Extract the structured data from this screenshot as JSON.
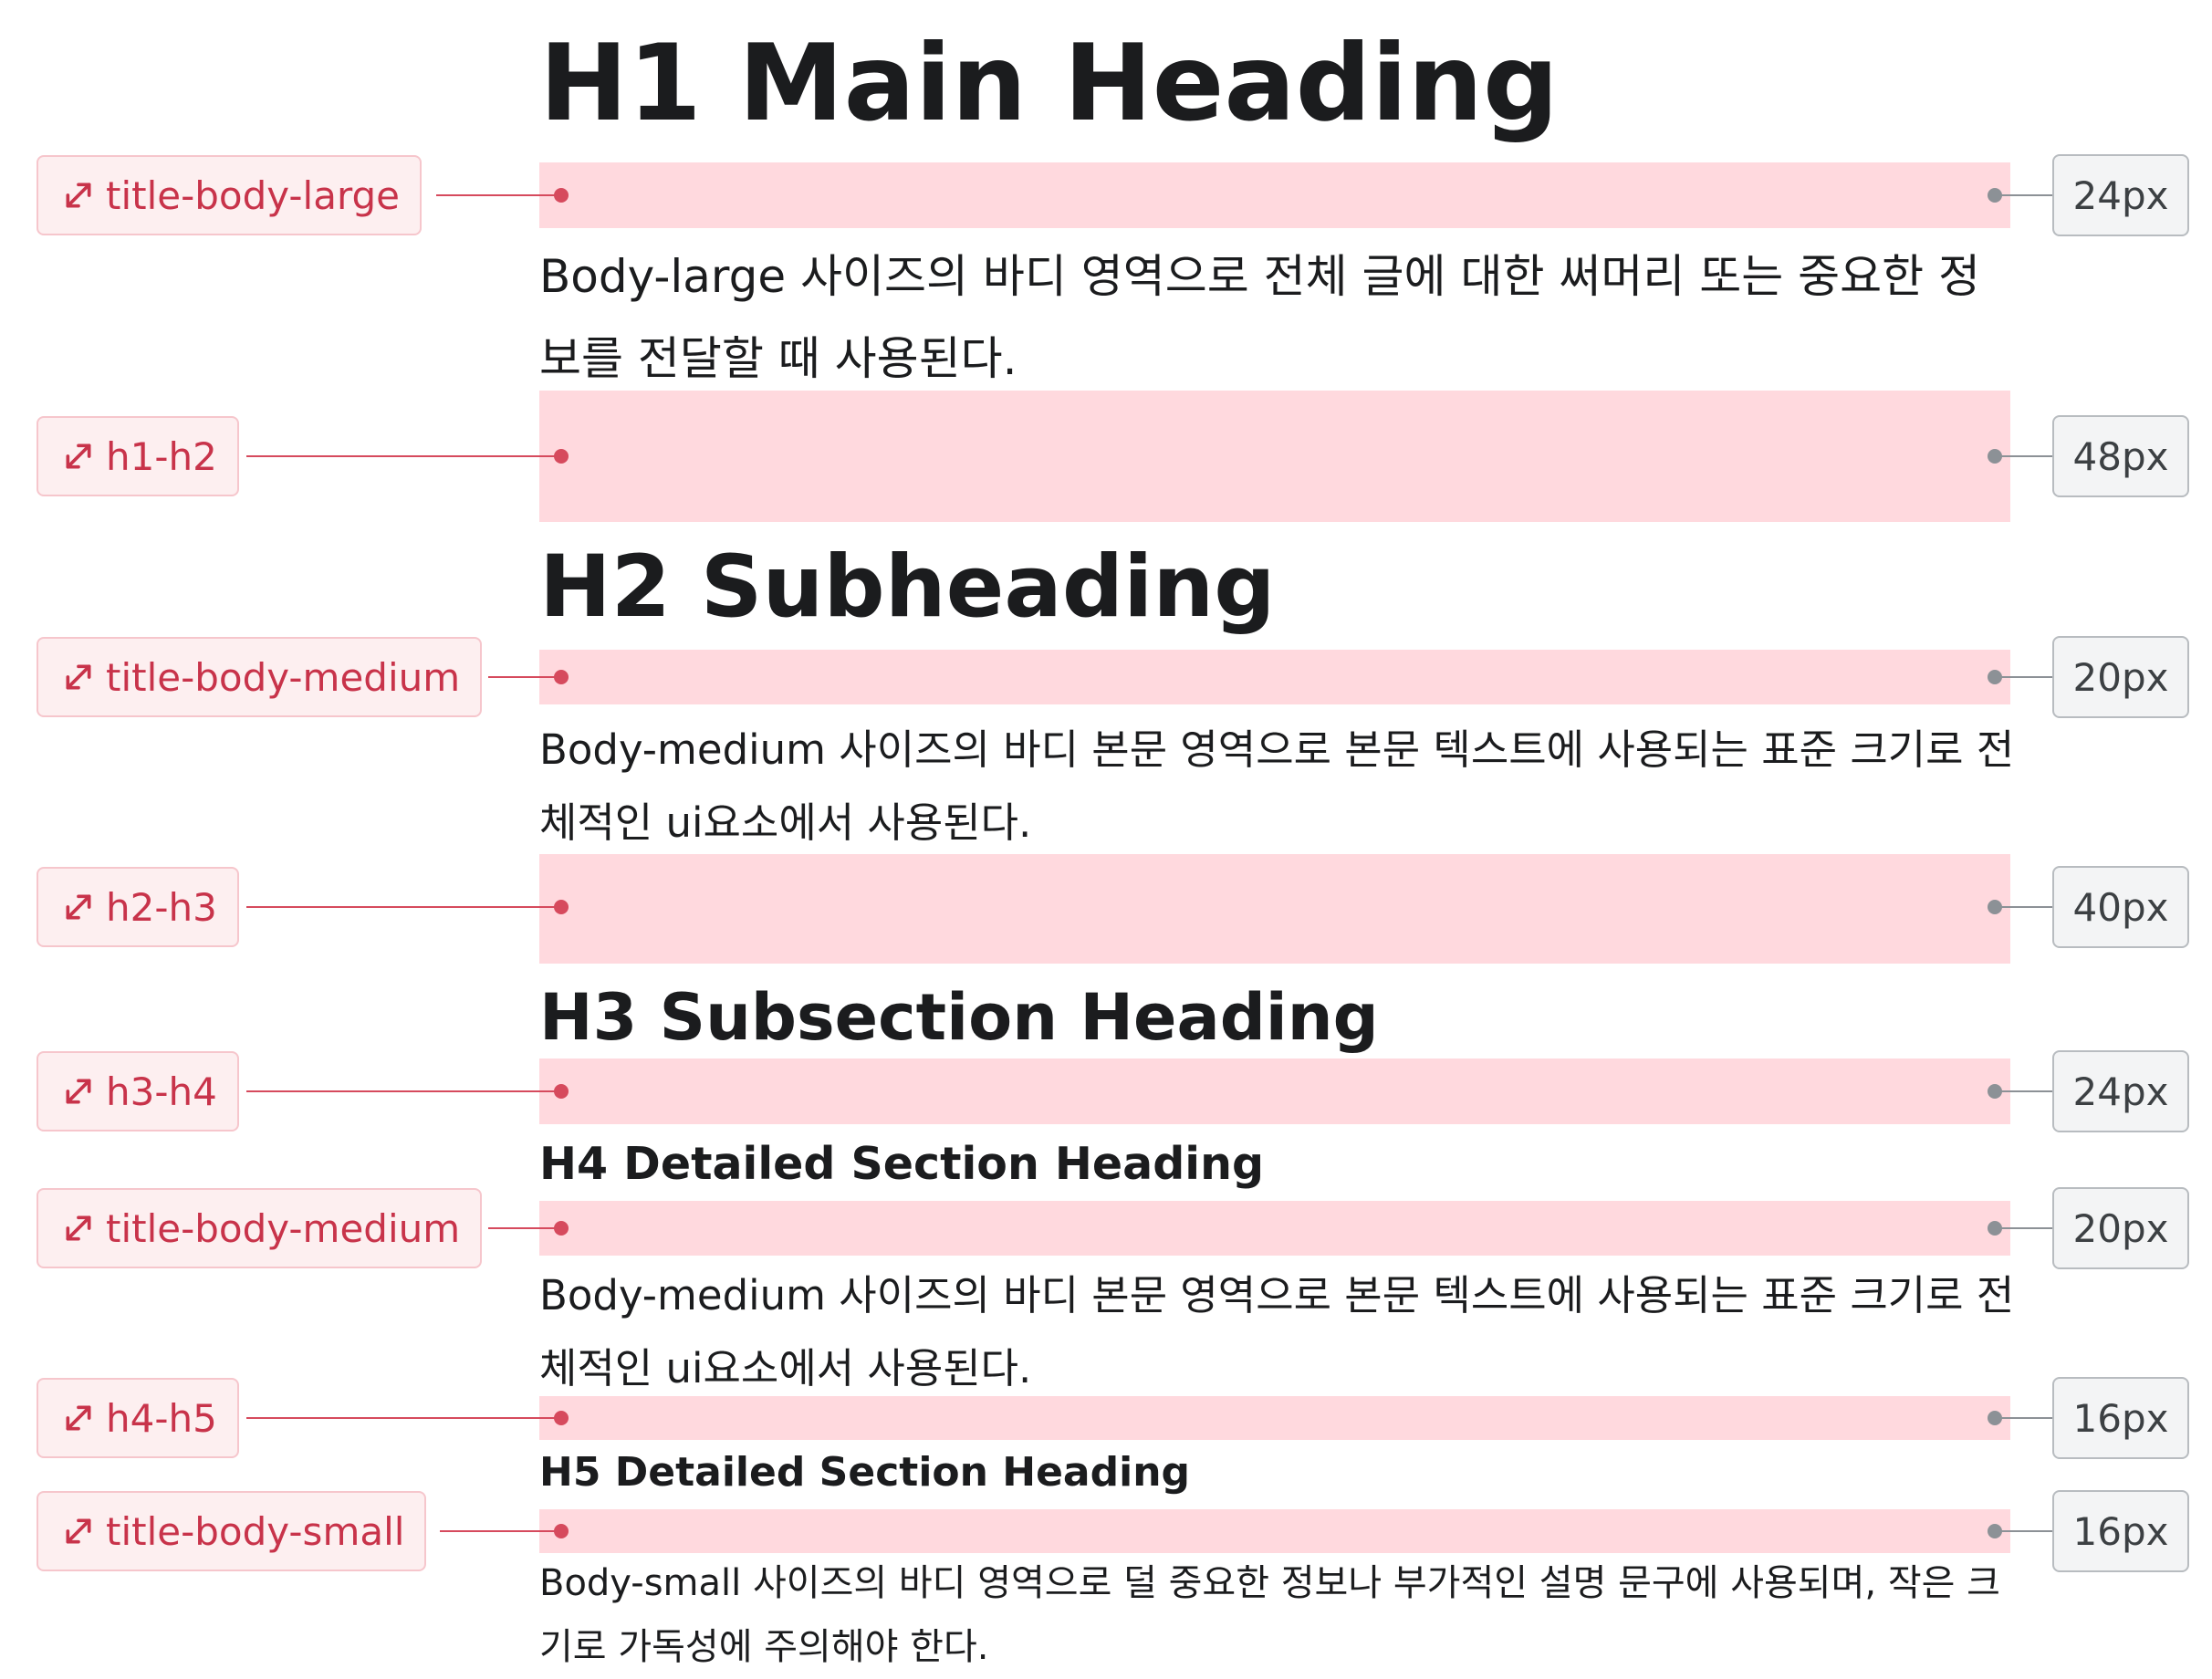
{
  "headings": {
    "h1": "H1 Main Heading",
    "h2": "H2 Subheading",
    "h3": "H3 Subsection Heading",
    "h4": "H4 Detailed Section Heading",
    "h5": "H5 Detailed Section Heading"
  },
  "bodies": {
    "large": "Body-large 사이즈의 바디 영역으로 전체 글에 대한 써머리 또는 중요한 정보를 전달할 때 사용된다.",
    "medium_1": "Body-medium 사이즈의 바디 본문 영역으로 본문 텍스트에 사용되는 표준 크기로 전체적인 ui요소에서 사용된다.",
    "medium_2": "Body-medium 사이즈의 바디 본문 영역으로 본문 텍스트에 사용되는 표준 크기로 전체적인 ui요소에서 사용된다.",
    "small": "Body-small 사이즈의 바디 영역으로 덜 중요한 정보나 부가적인 설명 문구에 사용되며, 작은 크기로 가독성에 주의해야 한다."
  },
  "spacings": [
    {
      "label": "title-body-large",
      "value": "24px"
    },
    {
      "label": "h1-h2",
      "value": "48px"
    },
    {
      "label": "title-body-medium",
      "value": "20px"
    },
    {
      "label": "h2-h3",
      "value": "40px"
    },
    {
      "label": "h3-h4",
      "value": "24px"
    },
    {
      "label": "title-body-medium",
      "value": "20px"
    },
    {
      "label": "h4-h5",
      "value": "16px"
    },
    {
      "label": "title-body-small",
      "value": "16px"
    }
  ],
  "icons": {
    "spacing_tag": "resize-diagonal-icon"
  },
  "colors": {
    "band": "#ffd9de",
    "tag_text": "#c8334a",
    "tag_border": "#f6c6cc",
    "marker_red": "#d64a5d",
    "marker_gray": "#8c9196"
  }
}
